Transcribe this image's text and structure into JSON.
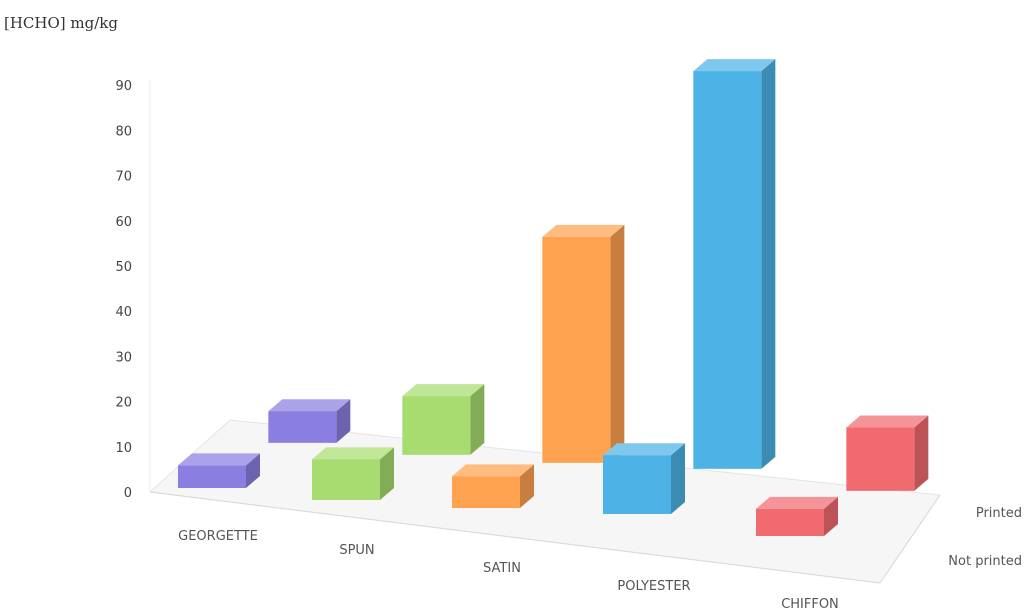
{
  "chart_data": {
    "type": "bar",
    "ylabel": "[HCHO] mg/kg",
    "ylim": [
      0,
      90
    ],
    "yticks": [
      "0",
      "10",
      "20",
      "30",
      "40",
      "50",
      "60",
      "70",
      "80",
      "90"
    ],
    "categories": [
      "GEORGETTE",
      "SPUN",
      "SATIN",
      "POLYESTER",
      "CHIFFON"
    ],
    "series": [
      {
        "name": "Not printed",
        "values": [
          5,
          9,
          7,
          13,
          6
        ]
      },
      {
        "name": "Printed",
        "values": [
          7,
          13,
          50,
          88,
          14
        ]
      }
    ],
    "category_colors": [
      "#8a7fe0",
      "#a8dc70",
      "#ffa24f",
      "#4db2e6",
      "#f06a70"
    ],
    "grid": false,
    "legend": "series labels on the depth axis at right"
  }
}
